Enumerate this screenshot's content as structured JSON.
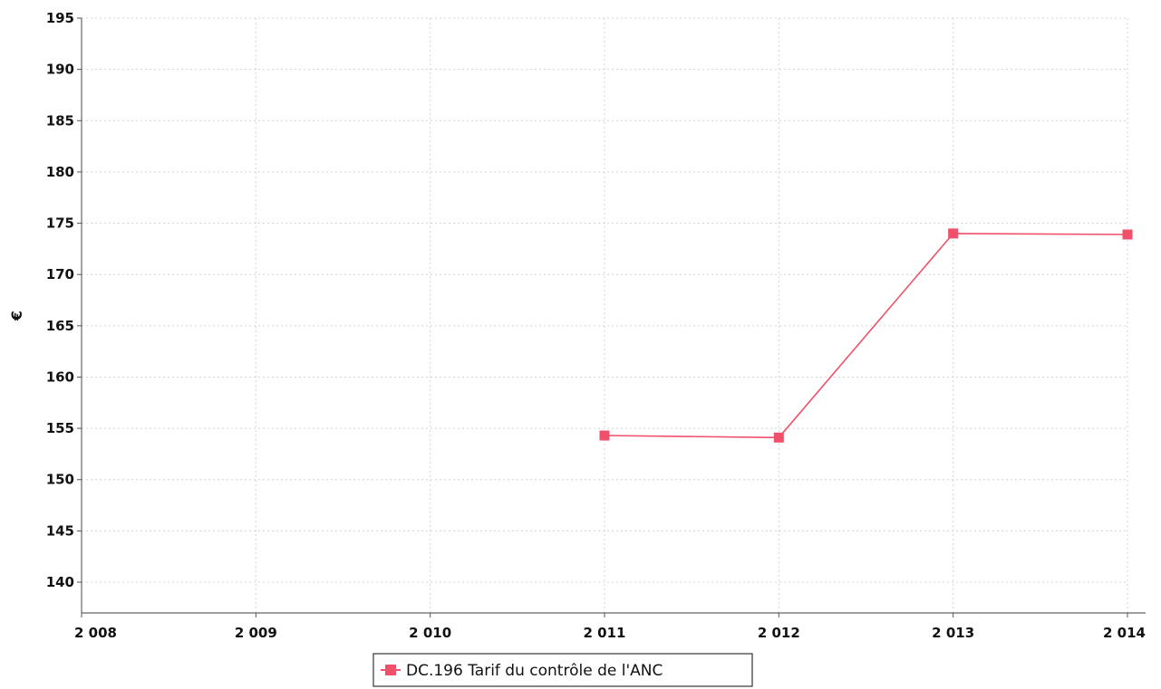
{
  "chart_data": {
    "type": "line",
    "title": "",
    "xlabel": "",
    "ylabel": "€",
    "x_ticks": [
      "2 008",
      "2 009",
      "2 010",
      "2 011",
      "2 012",
      "2 013",
      "2 014"
    ],
    "y_ticks": [
      140,
      145,
      150,
      155,
      160,
      165,
      170,
      175,
      180,
      185,
      190,
      195
    ],
    "xlim": [
      2008,
      2014
    ],
    "ylim": [
      137,
      195
    ],
    "grid": true,
    "legend_position": "bottom-center",
    "series": [
      {
        "name": "DC.196 Tarif du contrôle de l'ANC",
        "color": "#f0506a",
        "marker": "square",
        "x": [
          2011,
          2012,
          2013,
          2014
        ],
        "y": [
          154.3,
          154.1,
          174.0,
          173.9
        ]
      }
    ]
  }
}
